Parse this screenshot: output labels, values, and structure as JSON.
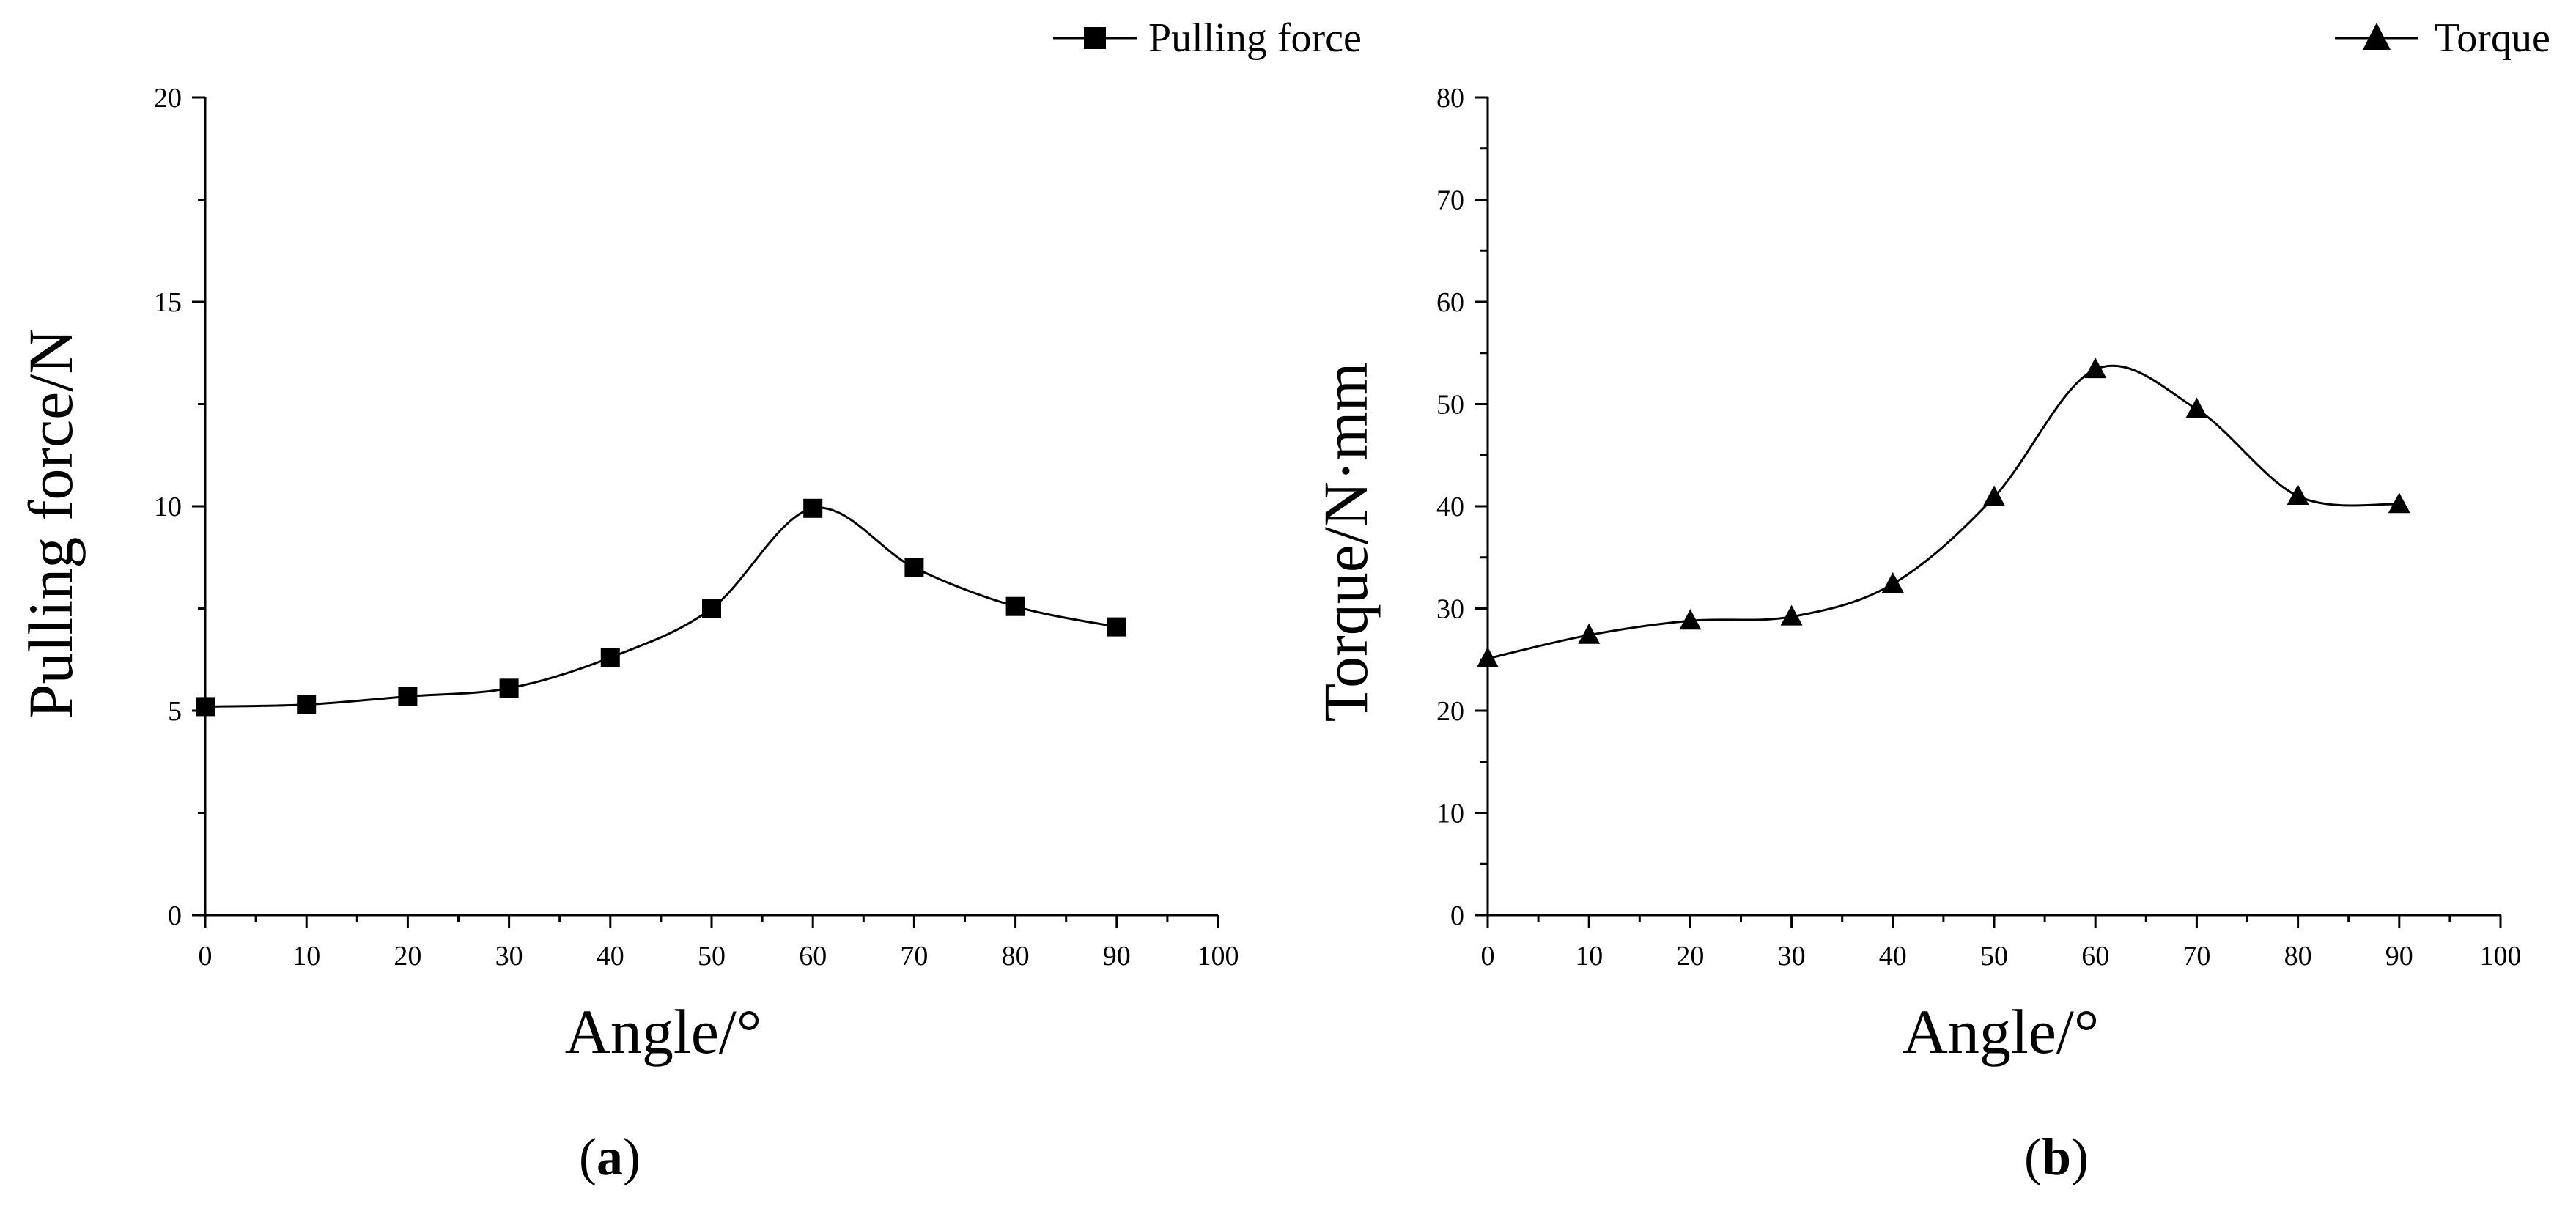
{
  "chart_data": [
    {
      "type": "line",
      "panel_label": {
        "open": "(",
        "letter": "a",
        "close": ")"
      },
      "xlabel": "Angle/°",
      "ylabel": "Pulling force/N",
      "xlim": [
        0,
        100
      ],
      "ylim": [
        0,
        20
      ],
      "x_ticks": [
        0,
        10,
        20,
        30,
        40,
        50,
        60,
        70,
        80,
        90,
        100
      ],
      "y_ticks": [
        0,
        5,
        10,
        15,
        20
      ],
      "legend": {
        "label": "Pulling force",
        "marker": "square",
        "position": "top-right"
      },
      "series": [
        {
          "name": "Pulling force",
          "marker": "square",
          "x": [
            0,
            10,
            20,
            30,
            40,
            50,
            60,
            70,
            80,
            90
          ],
          "values": [
            5.1,
            5.15,
            5.35,
            5.55,
            6.3,
            7.5,
            9.95,
            8.5,
            7.55,
            7.05
          ]
        }
      ]
    },
    {
      "type": "line",
      "panel_label": {
        "open": "(",
        "letter": "b",
        "close": ")"
      },
      "xlabel": "Angle/°",
      "ylabel": "Torque/N·mm",
      "xlim": [
        0,
        100
      ],
      "ylim": [
        0,
        80
      ],
      "x_ticks": [
        0,
        10,
        20,
        30,
        40,
        50,
        60,
        70,
        80,
        90,
        100
      ],
      "y_ticks": [
        0,
        10,
        20,
        30,
        40,
        50,
        60,
        70,
        80
      ],
      "legend": {
        "label": "Torque",
        "marker": "triangle",
        "position": "top-right"
      },
      "series": [
        {
          "name": "Torque",
          "marker": "triangle",
          "x": [
            0,
            10,
            20,
            30,
            40,
            50,
            60,
            70,
            80,
            90
          ],
          "values": [
            25.1,
            27.4,
            28.8,
            29.2,
            32.4,
            40.9,
            53.4,
            49.5,
            41.0,
            40.2
          ]
        }
      ]
    }
  ]
}
